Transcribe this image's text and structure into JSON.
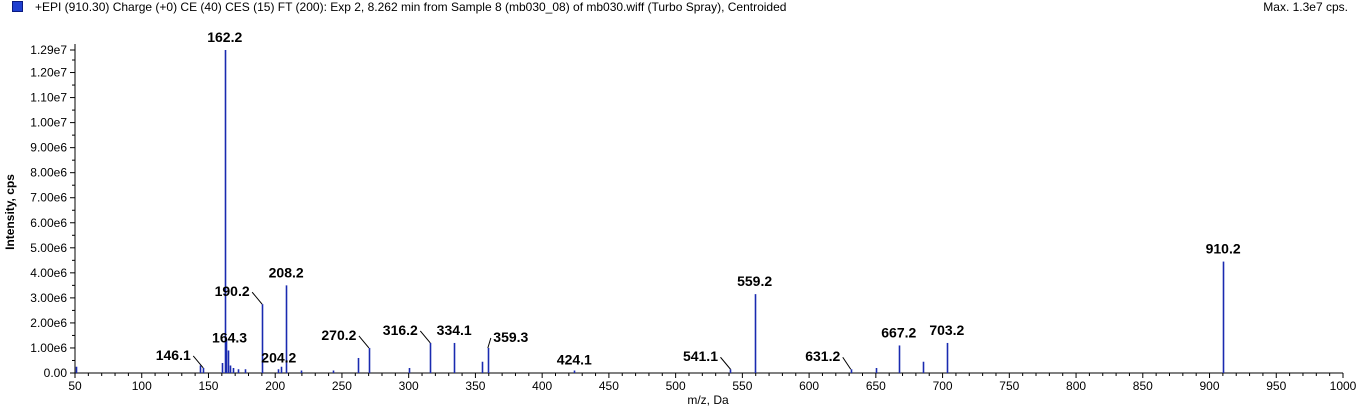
{
  "header": {
    "title": "+EPI (910.30) Charge (+0) CE (40) CES (15) FT (200): Exp 2, 8.262 min from Sample 8 (mb030_08) of mb030.wiff (Turbo Spray), Centroided",
    "max_label": "Max. 1.3e7 cps."
  },
  "colors": {
    "peak": "#1a2ab0",
    "axis": "#000000",
    "legend_marker": "#1f3fd0"
  },
  "chart_data": {
    "type": "bar",
    "title": "",
    "xlabel": "m/z, Da",
    "ylabel": "Intensity, cps",
    "xlim": [
      50,
      1000
    ],
    "ylim": [
      0,
      13500000
    ],
    "grid": false,
    "x_ticks": [
      50,
      100,
      150,
      200,
      250,
      300,
      350,
      400,
      450,
      500,
      550,
      600,
      650,
      700,
      750,
      800,
      850,
      900,
      950,
      1000
    ],
    "y_ticks": [
      {
        "value": 0,
        "label": "0.00"
      },
      {
        "value": 1000000,
        "label": "1.00e6"
      },
      {
        "value": 2000000,
        "label": "2.00e6"
      },
      {
        "value": 3000000,
        "label": "3.00e6"
      },
      {
        "value": 4000000,
        "label": "4.00e6"
      },
      {
        "value": 5000000,
        "label": "5.00e6"
      },
      {
        "value": 6000000,
        "label": "6.00e6"
      },
      {
        "value": 7000000,
        "label": "7.00e6"
      },
      {
        "value": 8000000,
        "label": "8.00e6"
      },
      {
        "value": 9000000,
        "label": "9.00e6"
      },
      {
        "value": 10000000,
        "label": "1.00e7"
      },
      {
        "value": 11000000,
        "label": "1.10e7"
      },
      {
        "value": 12000000,
        "label": "1.20e7"
      },
      {
        "value": 12900000,
        "label": "1.29e7"
      }
    ],
    "peaks": [
      {
        "mz": 50.5,
        "intensity": 250000
      },
      {
        "mz": 143.5,
        "intensity": 300000
      },
      {
        "mz": 146.1,
        "intensity": 200000,
        "label": "146.1"
      },
      {
        "mz": 160.5,
        "intensity": 400000
      },
      {
        "mz": 162.2,
        "intensity": 12900000,
        "label": "162.2"
      },
      {
        "mz": 163.2,
        "intensity": 1350000
      },
      {
        "mz": 164.3,
        "intensity": 900000,
        "label": "164.3"
      },
      {
        "mz": 166.0,
        "intensity": 300000
      },
      {
        "mz": 168.5,
        "intensity": 200000
      },
      {
        "mz": 172.0,
        "intensity": 150000
      },
      {
        "mz": 177.0,
        "intensity": 150000
      },
      {
        "mz": 190.2,
        "intensity": 2750000,
        "label": "190.2"
      },
      {
        "mz": 202.0,
        "intensity": 150000
      },
      {
        "mz": 204.2,
        "intensity": 250000,
        "label": "204.2"
      },
      {
        "mz": 208.2,
        "intensity": 3500000,
        "label": "208.2"
      },
      {
        "mz": 219.0,
        "intensity": 100000
      },
      {
        "mz": 243.0,
        "intensity": 100000
      },
      {
        "mz": 262.0,
        "intensity": 600000
      },
      {
        "mz": 270.2,
        "intensity": 1000000,
        "label": "270.2"
      },
      {
        "mz": 300.0,
        "intensity": 200000
      },
      {
        "mz": 316.2,
        "intensity": 1200000,
        "label": "316.2"
      },
      {
        "mz": 334.1,
        "intensity": 1200000,
        "label": "334.1"
      },
      {
        "mz": 355.0,
        "intensity": 450000
      },
      {
        "mz": 359.3,
        "intensity": 1000000,
        "label": "359.3"
      },
      {
        "mz": 424.1,
        "intensity": 100000,
        "label": "424.1"
      },
      {
        "mz": 541.1,
        "intensity": 150000,
        "label": "541.1"
      },
      {
        "mz": 559.2,
        "intensity": 3150000,
        "label": "559.2"
      },
      {
        "mz": 631.2,
        "intensity": 150000,
        "label": "631.2"
      },
      {
        "mz": 650.0,
        "intensity": 200000
      },
      {
        "mz": 667.2,
        "intensity": 1100000,
        "label": "667.2"
      },
      {
        "mz": 685.0,
        "intensity": 450000
      },
      {
        "mz": 703.2,
        "intensity": 1200000,
        "label": "703.2"
      },
      {
        "mz": 910.2,
        "intensity": 4450000,
        "label": "910.2"
      }
    ]
  }
}
